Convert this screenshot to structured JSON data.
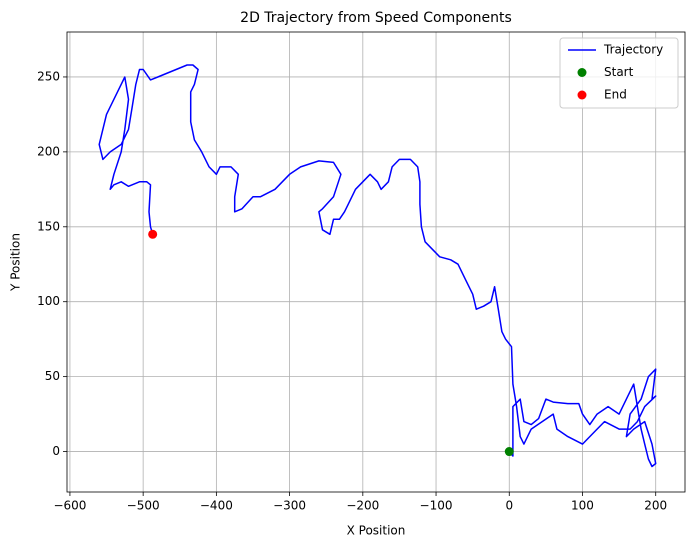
{
  "chart_data": {
    "type": "line",
    "title": "2D Trajectory from Speed Components",
    "x_label": "X Position",
    "y_label": "Y Position",
    "xlim": [
      -604,
      240
    ],
    "ylim": [
      -27,
      280
    ],
    "xticks": [
      {
        "value": -600,
        "label": "−600"
      },
      {
        "value": -500,
        "label": "−500"
      },
      {
        "value": -400,
        "label": "−400"
      },
      {
        "value": -300,
        "label": "−300"
      },
      {
        "value": -200,
        "label": "−200"
      },
      {
        "value": -100,
        "label": "−100"
      },
      0,
      100,
      200
    ],
    "yticks": [
      0,
      50,
      100,
      150,
      200,
      250
    ],
    "grid": true,
    "legend": "upper right",
    "series": [
      {
        "name": "Trajectory",
        "type": "line",
        "color": "#0000ff",
        "x": [
          0,
          5,
          5,
          15,
          20,
          30,
          40,
          50,
          60,
          80,
          95,
          100,
          110,
          120,
          135,
          150,
          160,
          170,
          175,
          180,
          185,
          190,
          195,
          200,
          195,
          185,
          170,
          160,
          165,
          180,
          190,
          200,
          195,
          200,
          185,
          175,
          165,
          150,
          130,
          120,
          100,
          80,
          65,
          60,
          45,
          30,
          20,
          15,
          10,
          5,
          3,
          -5,
          -10,
          -15,
          -20,
          -25,
          -35,
          -45,
          -50,
          -60,
          -70,
          -80,
          -95,
          -105,
          -115,
          -120,
          -122,
          -122,
          -125,
          -135,
          -150,
          -160,
          -165,
          -175,
          -180,
          -190,
          -210,
          -220,
          -225,
          -232,
          -240,
          -245,
          -255,
          -260,
          -255,
          -240,
          -230,
          -240,
          -260,
          -285,
          -300,
          -320,
          -340,
          -350,
          -365,
          -375,
          -375,
          -370,
          -380,
          -395,
          -400,
          -410,
          -420,
          -430,
          -435,
          -435,
          -430,
          -425,
          -432,
          -440,
          -455,
          -470,
          -480,
          -490,
          -500,
          -505,
          -510,
          -515,
          -520,
          -530,
          -545,
          -555,
          -560,
          -550,
          -535,
          -525,
          -520,
          -525,
          -530,
          -540,
          -545,
          -540,
          -530,
          -520,
          -505,
          -495,
          -490,
          -492,
          -490,
          -487
        ],
        "y": [
          0,
          -3,
          30,
          35,
          20,
          18,
          22,
          35,
          33,
          32,
          32,
          25,
          18,
          25,
          30,
          25,
          35,
          45,
          30,
          15,
          5,
          -5,
          -10,
          -8,
          5,
          20,
          15,
          10,
          25,
          35,
          50,
          55,
          35,
          37,
          30,
          20,
          15,
          15,
          20,
          15,
          5,
          10,
          15,
          25,
          20,
          15,
          5,
          10,
          30,
          45,
          70,
          75,
          80,
          95,
          110,
          100,
          97,
          95,
          105,
          115,
          125,
          128,
          130,
          135,
          140,
          150,
          165,
          180,
          190,
          195,
          195,
          190,
          180,
          175,
          180,
          185,
          175,
          165,
          160,
          155,
          155,
          145,
          148,
          160,
          162,
          170,
          185,
          193,
          194,
          190,
          185,
          175,
          170,
          170,
          162,
          160,
          170,
          185,
          190,
          190,
          185,
          190,
          200,
          208,
          220,
          240,
          245,
          255,
          258,
          258,
          255,
          252,
          250,
          248,
          255,
          255,
          245,
          230,
          215,
          205,
          200,
          195,
          205,
          225,
          240,
          250,
          235,
          215,
          200,
          185,
          175,
          178,
          180,
          177,
          180,
          180,
          178,
          160,
          150,
          145
        ]
      },
      {
        "name": "Start",
        "type": "scatter",
        "color": "#008000",
        "x": [
          0
        ],
        "y": [
          0
        ]
      },
      {
        "name": "End",
        "type": "scatter",
        "color": "#ff0000",
        "x": [
          -487
        ],
        "y": [
          145
        ]
      }
    ]
  }
}
